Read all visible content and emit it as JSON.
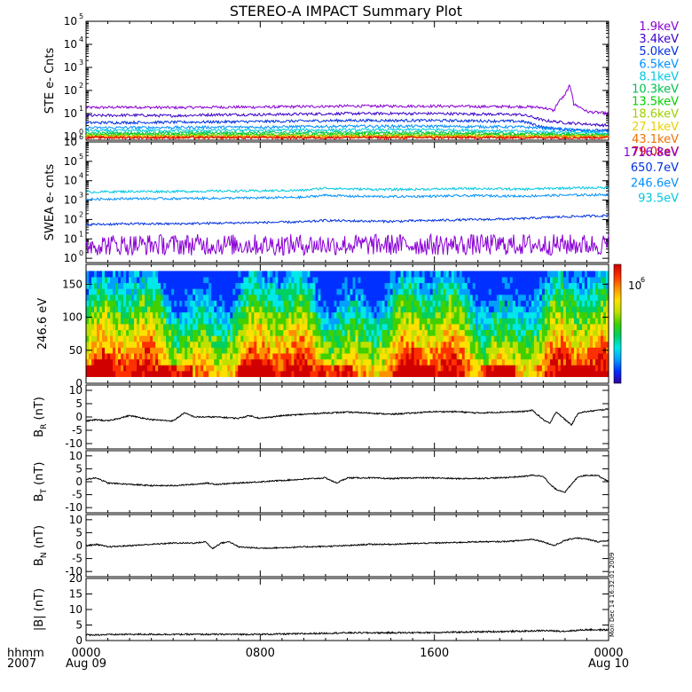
{
  "title": "STEREO-A IMPACT Summary Plot",
  "timestamp": "Mon Dec 14 16:32:01 2009",
  "time_axis": {
    "row1_label": "hhmm",
    "row2_label": "2007",
    "ticks": [
      {
        "t": 0,
        "hhmm": "0000",
        "date": "Aug 09"
      },
      {
        "t": 8,
        "hhmm": "0800",
        "date": ""
      },
      {
        "t": 16,
        "hhmm": "1600",
        "date": ""
      },
      {
        "t": 24,
        "hhmm": "0000",
        "date": "Aug 10"
      }
    ]
  },
  "chart_data": [
    {
      "id": "ste",
      "type": "line",
      "log_y": true,
      "ylabel": "STE e- Cnts",
      "ylim": [
        0.7,
        100000
      ],
      "ytick_exponents": [
        0,
        1,
        2,
        3,
        4,
        5
      ],
      "xlim": [
        0,
        24
      ],
      "series": [
        {
          "name": "1.9keV",
          "color": "#8a00d4",
          "x": [
            0,
            2,
            4,
            6,
            8,
            10,
            12,
            14,
            16,
            18,
            20,
            21,
            21.5,
            22,
            22.2,
            22.4,
            23,
            24
          ],
          "y": [
            18,
            19,
            18,
            19,
            19,
            20,
            21,
            21,
            21,
            20,
            20,
            18,
            13,
            60,
            150,
            25,
            12,
            10
          ]
        },
        {
          "name": "3.4keV",
          "color": "#3a00c8",
          "x": [
            0,
            2,
            4,
            6,
            8,
            10,
            12,
            14,
            16,
            18,
            20,
            21,
            22,
            23,
            24
          ],
          "y": [
            8,
            8.5,
            8,
            9,
            9,
            9.5,
            10,
            10,
            10,
            9.5,
            9,
            5,
            4,
            3.5,
            3
          ]
        },
        {
          "name": "5.0keV",
          "color": "#0030e0",
          "x": [
            0,
            4,
            8,
            12,
            16,
            20,
            21,
            22,
            24
          ],
          "y": [
            4,
            4.2,
            4.5,
            5,
            5,
            4.6,
            2.5,
            2,
            1.8
          ]
        },
        {
          "name": "6.5keV",
          "color": "#0090ff",
          "x": [
            0,
            4,
            8,
            12,
            16,
            20,
            24
          ],
          "y": [
            2.4,
            2.5,
            2.6,
            2.8,
            2.8,
            2.6,
            1.6
          ]
        },
        {
          "name": "8.1keV",
          "color": "#00c8e0",
          "x": [
            0,
            8,
            16,
            24
          ],
          "y": [
            1.8,
            1.9,
            2,
            1.4
          ]
        },
        {
          "name": "10.3keV",
          "color": "#00c050",
          "x": [
            0,
            8,
            16,
            24
          ],
          "y": [
            1.4,
            1.5,
            1.5,
            1.2
          ]
        },
        {
          "name": "13.5keV",
          "color": "#00d000",
          "x": [
            0,
            8,
            16,
            24
          ],
          "y": [
            1.2,
            1.25,
            1.25,
            1.1
          ]
        },
        {
          "name": "18.6keV",
          "color": "#a0d000",
          "x": [
            0,
            8,
            16,
            24
          ],
          "y": [
            1.1,
            1.1,
            1.1,
            1.0
          ]
        },
        {
          "name": "27.1keV",
          "color": "#e8d000",
          "x": [
            0,
            8,
            16,
            24
          ],
          "y": [
            1.0,
            1.0,
            1.0,
            1.0
          ]
        },
        {
          "name": "43.1keV",
          "color": "#f07000",
          "x": [
            0,
            8,
            16,
            24
          ],
          "y": [
            0.95,
            0.95,
            0.95,
            0.95
          ]
        },
        {
          "name": "79.0keV",
          "color": "#e00000",
          "x": [
            0,
            8,
            16,
            24
          ],
          "y": [
            0.9,
            0.9,
            0.9,
            0.9
          ]
        }
      ]
    },
    {
      "id": "swea",
      "type": "line",
      "log_y": true,
      "ylabel": "SWEA e- cnts",
      "ylim": [
        0.6,
        1000000
      ],
      "ytick_exponents": [
        0,
        1,
        2,
        3,
        4,
        5,
        6
      ],
      "xlim": [
        0,
        24
      ],
      "series": [
        {
          "name": "1716.8eV",
          "color": "#8a00d4",
          "x": [
            0,
            4,
            8,
            12,
            16,
            20,
            24
          ],
          "y": [
            5,
            5,
            5,
            5,
            5,
            5,
            5
          ]
        },
        {
          "name": "650.7eV",
          "color": "#0030e0",
          "x": [
            0,
            2,
            4,
            6,
            8,
            10,
            11,
            12,
            14,
            16,
            18,
            20,
            22,
            24
          ],
          "y": [
            55,
            60,
            60,
            65,
            70,
            75,
            90,
            85,
            80,
            90,
            100,
            110,
            140,
            160
          ]
        },
        {
          "name": "246.6eV",
          "color": "#0090ff",
          "x": [
            0,
            2,
            4,
            6,
            8,
            10,
            11,
            12,
            14,
            16,
            18,
            20,
            22,
            24
          ],
          "y": [
            1100,
            1200,
            1200,
            1250,
            1300,
            1400,
            1800,
            1600,
            1500,
            1600,
            1700,
            1600,
            1800,
            1900
          ]
        },
        {
          "name": "93.5eV",
          "color": "#00c8e0",
          "x": [
            0,
            2,
            4,
            6,
            8,
            10,
            11,
            12,
            14,
            16,
            18,
            20,
            22,
            24
          ],
          "y": [
            2600,
            2800,
            2800,
            2900,
            3000,
            3200,
            4200,
            3800,
            3500,
            3700,
            4000,
            3600,
            4200,
            4400
          ]
        }
      ]
    },
    {
      "id": "pad",
      "type": "heatmap",
      "ylabel": "246.6 eV",
      "ylim": [
        0,
        180
      ],
      "yticks": [
        0,
        50,
        100,
        150
      ],
      "xlim": [
        0,
        24
      ],
      "colorbar_label": "10",
      "colorbar_exponent": "6",
      "colormap": [
        "#3000a0",
        "#0030ff",
        "#00a0ff",
        "#00e8e8",
        "#00d060",
        "#40d000",
        "#c0e000",
        "#ffe000",
        "#ff9000",
        "#ff3000",
        "#d00000"
      ]
    },
    {
      "id": "br",
      "type": "line",
      "ylabel_main": "B",
      "ylabel_sub": "R",
      "ylabel_unit": "(nT)",
      "ylim": [
        -12,
        12
      ],
      "yticks": [
        -10,
        -5,
        0,
        5,
        10
      ],
      "xlim": [
        0,
        24
      ],
      "series": [
        {
          "name": "",
          "color": "#000000",
          "x": [
            0,
            0.5,
            1,
            1.5,
            2,
            3,
            4,
            4.5,
            5,
            6,
            7,
            7.5,
            8,
            8.5,
            9,
            10,
            11,
            12,
            13,
            14,
            15,
            16,
            17,
            18,
            19,
            20,
            20.5,
            21,
            21.3,
            21.6,
            22,
            22.3,
            22.6,
            23,
            23.5,
            24
          ],
          "y": [
            -1.5,
            -1,
            -1.5,
            -0.5,
            0.5,
            -1,
            -1.5,
            1.5,
            0,
            0,
            -0.5,
            0.5,
            -0.5,
            0,
            0.5,
            1,
            1.5,
            1.8,
            1.5,
            1,
            1.5,
            2,
            2,
            1.5,
            1.8,
            2,
            2.5,
            -1,
            -2.5,
            2,
            -1,
            -3,
            1.5,
            2,
            2.5,
            3
          ]
        }
      ]
    },
    {
      "id": "bt",
      "type": "line",
      "ylabel_main": "B",
      "ylabel_sub": "T",
      "ylabel_unit": "(nT)",
      "ylim": [
        -12,
        12
      ],
      "yticks": [
        -10,
        -5,
        0,
        5,
        10
      ],
      "xlim": [
        0,
        24
      ],
      "series": [
        {
          "name": "",
          "color": "#000000",
          "x": [
            0,
            0.5,
            1,
            2,
            3,
            4,
            5,
            5.5,
            6,
            7,
            8,
            9,
            10,
            11,
            11.5,
            12,
            13,
            14,
            15,
            16,
            17,
            18,
            19,
            20,
            20.5,
            21,
            21.3,
            21.6,
            22,
            22.3,
            22.6,
            23,
            23.5,
            24
          ],
          "y": [
            1,
            1.5,
            -0.5,
            -1,
            -1.5,
            -1.5,
            -1,
            -0.5,
            -1,
            -0.5,
            0,
            0.5,
            1,
            1.5,
            -0.5,
            1.5,
            1.5,
            1.2,
            1.5,
            1.5,
            1.2,
            1.3,
            1.5,
            2,
            2.5,
            2.2,
            -1,
            -3,
            -4,
            -1,
            2,
            2.5,
            2.5,
            0
          ]
        }
      ]
    },
    {
      "id": "bn",
      "type": "line",
      "ylabel_main": "B",
      "ylabel_sub": "N",
      "ylabel_unit": "(nT)",
      "ylim": [
        -12,
        12
      ],
      "yticks": [
        -10,
        -5,
        0,
        5,
        10
      ],
      "xlim": [
        0,
        24
      ],
      "series": [
        {
          "name": "",
          "color": "#000000",
          "x": [
            0,
            0.5,
            1,
            2,
            3,
            4,
            5,
            5.5,
            5.8,
            6.2,
            6.6,
            7,
            8,
            9,
            10,
            11,
            12,
            13,
            14,
            15,
            16,
            17,
            18,
            19,
            20,
            20.5,
            21,
            21.5,
            22,
            22.5,
            23,
            23.5,
            24
          ],
          "y": [
            0,
            0.5,
            -0.5,
            0,
            0.5,
            1,
            1,
            1.5,
            -1.2,
            1,
            1.5,
            -0.5,
            -1,
            -0.8,
            -0.5,
            -0.3,
            0,
            0.5,
            0.5,
            0.8,
            1,
            1.2,
            1.5,
            1.5,
            2,
            2.5,
            1.5,
            0,
            2,
            3,
            2.5,
            1.5,
            2
          ]
        }
      ]
    },
    {
      "id": "bmag",
      "type": "line",
      "ylabel_main": "|B|",
      "ylabel_sub": "",
      "ylabel_unit": "(nT)",
      "ylim": [
        0,
        20
      ],
      "yticks": [
        0,
        5,
        10,
        15,
        20
      ],
      "xlim": [
        0,
        24
      ],
      "series": [
        {
          "name": "",
          "color": "#000000",
          "x": [
            0,
            2,
            4,
            6,
            8,
            10,
            12,
            14,
            16,
            18,
            20,
            21,
            22,
            23,
            24
          ],
          "y": [
            1.8,
            2,
            2,
            2,
            2,
            2.2,
            2.5,
            2.5,
            2.6,
            2.8,
            3,
            3.2,
            3,
            3.5,
            3.4
          ]
        }
      ]
    }
  ]
}
